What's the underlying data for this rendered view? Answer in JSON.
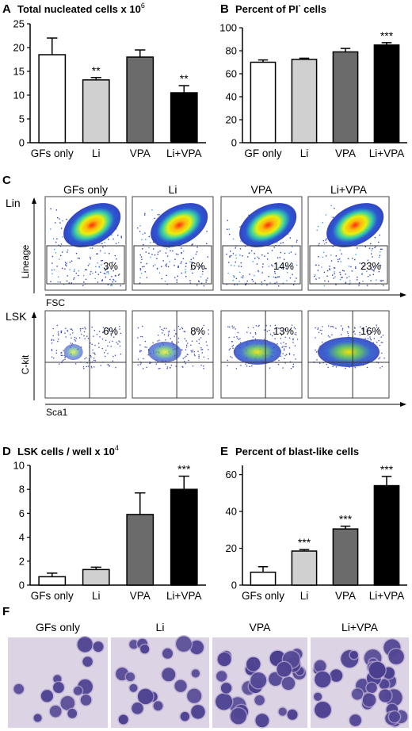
{
  "panels": {
    "A": {
      "letter": "A",
      "title": "Total nucleated cells x 10",
      "title_sup": "6"
    },
    "B": {
      "letter": "B",
      "title": "Percent of PI",
      "title_sup": "-",
      "title_end": " cells"
    },
    "C": {
      "letter": "C",
      "row_lin": "Lin",
      "row_lsk": "LSK",
      "lin_ylabel": "Lineage",
      "lin_xlabel": "FSC",
      "lsk_ylabel": "C-kit",
      "lsk_xlabel": "Sca1",
      "columns": [
        "GFs only",
        "Li",
        "VPA",
        "Li+VPA"
      ],
      "lin_percents": [
        "3%",
        "6%",
        "14%",
        "23%"
      ],
      "lsk_percents": [
        "6%",
        "8%",
        "13%",
        "16%"
      ]
    },
    "D": {
      "letter": "D",
      "title": "LSK cells / well x 10",
      "title_sup": "4"
    },
    "E": {
      "letter": "E",
      "title": "Percent of blast-like cells"
    },
    "F": {
      "letter": "F",
      "columns": [
        "GFs only",
        "Li",
        "VPA",
        "Li+VPA"
      ]
    }
  },
  "colors": {
    "white_bar": "#ffffff",
    "li_bar": "#d0d0d0",
    "vpa_bar": "#6b6b6b",
    "livpa_bar": "#000000",
    "stain_bg": "#dcd4e4",
    "stain_cell": "#4a3f8f"
  },
  "chart_data": [
    {
      "id": "A",
      "type": "bar",
      "categories": [
        "GFs only",
        "Li",
        "VPA",
        "Li+VPA"
      ],
      "values": [
        18.5,
        13.2,
        18.0,
        10.5
      ],
      "errors": [
        3.5,
        0.5,
        1.5,
        1.5
      ],
      "significance": [
        "",
        "**",
        "",
        "**"
      ],
      "ylim": [
        0,
        25
      ],
      "yticks": [
        0,
        5,
        10,
        15,
        20,
        25
      ]
    },
    {
      "id": "B",
      "type": "bar",
      "categories": [
        "GF  only",
        "Li",
        "VPA",
        "Li+VPA"
      ],
      "values": [
        70,
        72.5,
        79,
        85
      ],
      "errors": [
        2,
        1,
        3,
        2
      ],
      "significance": [
        "",
        "",
        "",
        "***"
      ],
      "ylim": [
        0,
        100
      ],
      "yticks": [
        0,
        20,
        40,
        60,
        80,
        100
      ]
    },
    {
      "id": "D",
      "type": "bar",
      "categories": [
        "GFs only",
        "Li",
        "VPA",
        "Li+VPA"
      ],
      "values": [
        0.7,
        1.3,
        5.9,
        8.0
      ],
      "errors": [
        0.3,
        0.2,
        1.8,
        1.1
      ],
      "significance": [
        "",
        "",
        "",
        "***"
      ],
      "ylim": [
        0,
        10
      ],
      "yticks": [
        0,
        2,
        4,
        6,
        8,
        10
      ]
    },
    {
      "id": "E",
      "type": "bar",
      "categories": [
        "GFs only",
        "Li",
        "VPA",
        "Li+VPA"
      ],
      "values": [
        7,
        18.5,
        30.5,
        54
      ],
      "errors": [
        3,
        0.8,
        1.5,
        5
      ],
      "significance": [
        "",
        "***",
        "***",
        "***"
      ],
      "ylim": [
        0,
        65
      ],
      "yticks": [
        0,
        20,
        40,
        60
      ]
    }
  ]
}
